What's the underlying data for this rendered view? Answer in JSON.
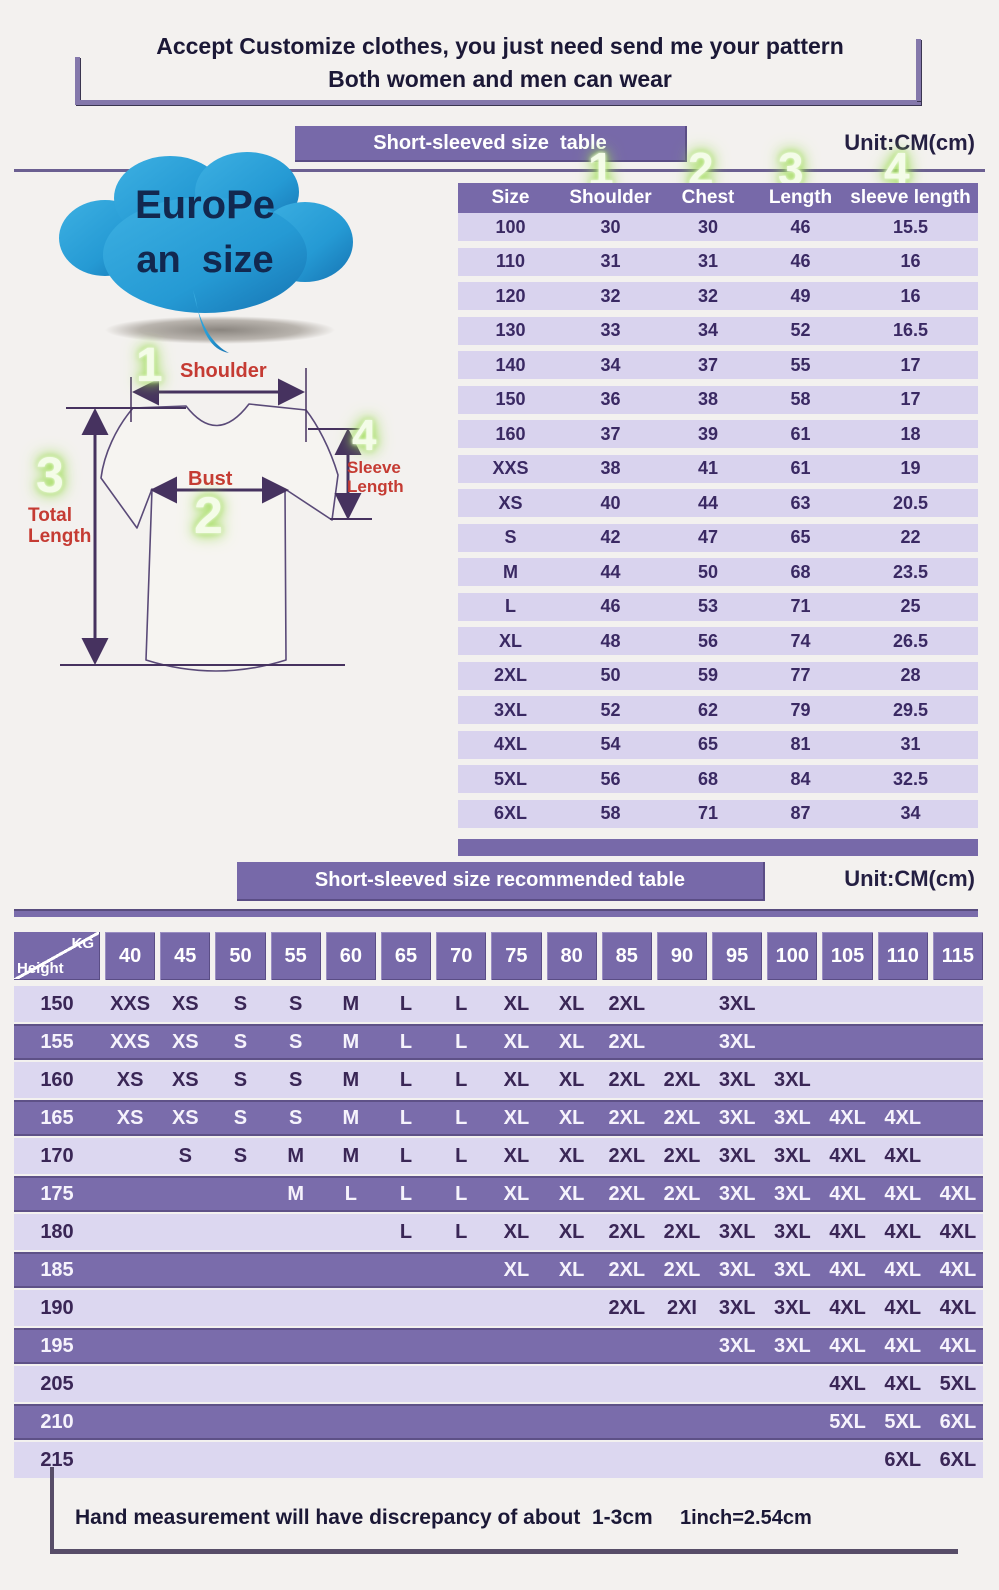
{
  "header": {
    "title_line1": "Accept Customize clothes, you just need send me your pattern",
    "title_line2": "Both women and men can wear"
  },
  "cloud": {
    "line1": "EuroPe",
    "line2": "an  size"
  },
  "diagram": {
    "marker1": "1",
    "label1": "Shoulder",
    "marker2": "2",
    "label2": "Bust",
    "marker3": "3",
    "label3": "Total\nLength",
    "marker4": "4",
    "label4": "Sleeve\nLength"
  },
  "size_table_section": {
    "banner": "Short-sleeved size  table",
    "unit": "Unit:CM(cm)",
    "column_markers": [
      "1",
      "2",
      "3",
      "4"
    ],
    "columns": [
      "Size",
      "Shoulder",
      "Chest",
      "Length",
      "sleeve length"
    ],
    "rows": [
      [
        "100",
        "30",
        "30",
        "46",
        "15.5"
      ],
      [
        "110",
        "31",
        "31",
        "46",
        "16"
      ],
      [
        "120",
        "32",
        "32",
        "49",
        "16"
      ],
      [
        "130",
        "33",
        "34",
        "52",
        "16.5"
      ],
      [
        "140",
        "34",
        "37",
        "55",
        "17"
      ],
      [
        "150",
        "36",
        "38",
        "58",
        "17"
      ],
      [
        "160",
        "37",
        "39",
        "61",
        "18"
      ],
      [
        "XXS",
        "38",
        "41",
        "61",
        "19"
      ],
      [
        "XS",
        "40",
        "44",
        "63",
        "20.5"
      ],
      [
        "S",
        "42",
        "47",
        "65",
        "22"
      ],
      [
        "M",
        "44",
        "50",
        "68",
        "23.5"
      ],
      [
        "L",
        "46",
        "53",
        "71",
        "25"
      ],
      [
        "XL",
        "48",
        "56",
        "74",
        "26.5"
      ],
      [
        "2XL",
        "50",
        "59",
        "77",
        "28"
      ],
      [
        "3XL",
        "52",
        "62",
        "79",
        "29.5"
      ],
      [
        "4XL",
        "54",
        "65",
        "81",
        "31"
      ],
      [
        "5XL",
        "56",
        "68",
        "84",
        "32.5"
      ],
      [
        "6XL",
        "58",
        "71",
        "87",
        "34"
      ]
    ]
  },
  "recommended_section": {
    "banner": "Short-sleeved size recommended table",
    "unit": "Unit:CM(cm)",
    "corner": {
      "top": "KG",
      "bottom": "Height"
    },
    "kg_columns": [
      "40",
      "45",
      "50",
      "55",
      "60",
      "65",
      "70",
      "75",
      "80",
      "85",
      "90",
      "95",
      "100",
      "105",
      "110",
      "115"
    ],
    "rows": [
      {
        "height": "150",
        "values": [
          "XXS",
          "XS",
          "S",
          "S",
          "M",
          "L",
          "L",
          "XL",
          "XL",
          "2XL",
          "",
          "3XL",
          "",
          "",
          "",
          ""
        ]
      },
      {
        "height": "155",
        "values": [
          "XXS",
          "XS",
          "S",
          "S",
          "M",
          "L",
          "L",
          "XL",
          "XL",
          "2XL",
          "",
          "3XL",
          "",
          "",
          "",
          ""
        ]
      },
      {
        "height": "160",
        "values": [
          "XS",
          "XS",
          "S",
          "S",
          "M",
          "L",
          "L",
          "XL",
          "XL",
          "2XL",
          "2XL",
          "3XL",
          "3XL",
          "",
          "",
          ""
        ]
      },
      {
        "height": "165",
        "values": [
          "XS",
          "XS",
          "S",
          "S",
          "M",
          "L",
          "L",
          "XL",
          "XL",
          "2XL",
          "2XL",
          "3XL",
          "3XL",
          "4XL",
          "4XL",
          ""
        ]
      },
      {
        "height": "170",
        "values": [
          "",
          "S",
          "S",
          "M",
          "M",
          "L",
          "L",
          "XL",
          "XL",
          "2XL",
          "2XL",
          "3XL",
          "3XL",
          "4XL",
          "4XL",
          ""
        ]
      },
      {
        "height": "175",
        "values": [
          "",
          "",
          "",
          "M",
          "L",
          "L",
          "L",
          "XL",
          "XL",
          "2XL",
          "2XL",
          "3XL",
          "3XL",
          "4XL",
          "4XL",
          "4XL"
        ]
      },
      {
        "height": "180",
        "values": [
          "",
          "",
          "",
          "",
          "",
          "L",
          "L",
          "XL",
          "XL",
          "2XL",
          "2XL",
          "3XL",
          "3XL",
          "4XL",
          "4XL",
          "4XL"
        ]
      },
      {
        "height": "185",
        "values": [
          "",
          "",
          "",
          "",
          "",
          "",
          "",
          "XL",
          "XL",
          "2XL",
          "2XL",
          "3XL",
          "3XL",
          "4XL",
          "4XL",
          "4XL"
        ]
      },
      {
        "height": "190",
        "values": [
          "",
          "",
          "",
          "",
          "",
          "",
          "",
          "",
          "",
          "2XL",
          "2XI",
          "3XL",
          "3XL",
          "4XL",
          "4XL",
          "4XL"
        ]
      },
      {
        "height": "195",
        "values": [
          "",
          "",
          "",
          "",
          "",
          "",
          "",
          "",
          "",
          "",
          "",
          "3XL",
          "3XL",
          "4XL",
          "4XL",
          "4XL"
        ]
      },
      {
        "height": "205",
        "values": [
          "",
          "",
          "",
          "",
          "",
          "",
          "",
          "",
          "",
          "",
          "",
          "",
          "",
          "4XL",
          "4XL",
          "5XL"
        ]
      },
      {
        "height": "210",
        "values": [
          "",
          "",
          "",
          "",
          "",
          "",
          "",
          "",
          "",
          "",
          "",
          "",
          "",
          "5XL",
          "5XL",
          "6XL"
        ]
      },
      {
        "height": "215",
        "values": [
          "",
          "",
          "",
          "",
          "",
          "",
          "",
          "",
          "",
          "",
          "",
          "",
          "",
          "",
          "6XL",
          "6XL"
        ]
      }
    ]
  },
  "footer": {
    "note": "Hand measurement will have discrepancy of about  1-3cm",
    "conversion": "1inch=2.54cm"
  },
  "colors": {
    "background": "#f3f1ef",
    "purple_header": "#7769a9",
    "purple_row": "#7a6cab",
    "light_row": "#dcd7f0",
    "dark_text": "#1b1836",
    "table_text": "#3a2963",
    "red_label": "#c53b33",
    "green_glow": "#9ddc55",
    "cloud_blue": "#2aa0d9"
  }
}
